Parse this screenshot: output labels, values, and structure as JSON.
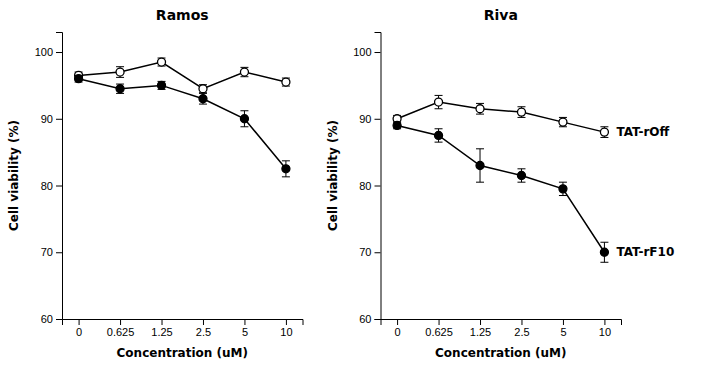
{
  "chart_data": [
    {
      "type": "line",
      "title": "Ramos",
      "x_label": "Concentration (uM)",
      "y_label": "Cell viability (%)",
      "categories": [
        "0",
        "0.625",
        "1.25",
        "2.5",
        "5",
        "10"
      ],
      "series": [
        {
          "color": "#000000",
          "marker": "open-circle",
          "line_style": "solid",
          "values": [
            96.5,
            97.0,
            98.5,
            94.5,
            97.0,
            95.5
          ],
          "errors": [
            0.5,
            0.8,
            0.6,
            0.6,
            0.7,
            0.6
          ]
        },
        {
          "color": "#000000",
          "marker": "circle",
          "line_style": "solid",
          "values": [
            96.0,
            94.5,
            95.0,
            93.0,
            90.0,
            82.5
          ],
          "errors": [
            0.5,
            0.7,
            0.6,
            0.8,
            1.2,
            1.2
          ]
        }
      ],
      "ylim": [
        60,
        103
      ],
      "yticks": [
        60,
        70,
        80,
        90,
        100
      ],
      "grid": false
    },
    {
      "type": "line",
      "title": "Riva",
      "x_label": "Concentration (uM)",
      "y_label": "Cell viability (%)",
      "categories": [
        "0",
        "0.625",
        "1.25",
        "2.5",
        "5",
        "10"
      ],
      "series": [
        {
          "name": "TAT-rOff",
          "color": "#000000",
          "marker": "open-circle",
          "line_style": "solid",
          "values": [
            90.0,
            92.5,
            91.5,
            91.0,
            89.5,
            88.0
          ],
          "errors": [
            0.5,
            1.0,
            0.8,
            0.8,
            0.7,
            0.8
          ]
        },
        {
          "name": "TAT-rF10",
          "color": "#000000",
          "marker": "circle",
          "line_style": "solid",
          "values": [
            89.0,
            87.5,
            83.0,
            81.5,
            79.5,
            70.0
          ],
          "errors": [
            0.5,
            1.0,
            2.5,
            1.0,
            1.0,
            1.5
          ]
        }
      ],
      "ylim": [
        60,
        103
      ],
      "yticks": [
        60,
        70,
        80,
        90,
        100
      ],
      "grid": false
    }
  ]
}
